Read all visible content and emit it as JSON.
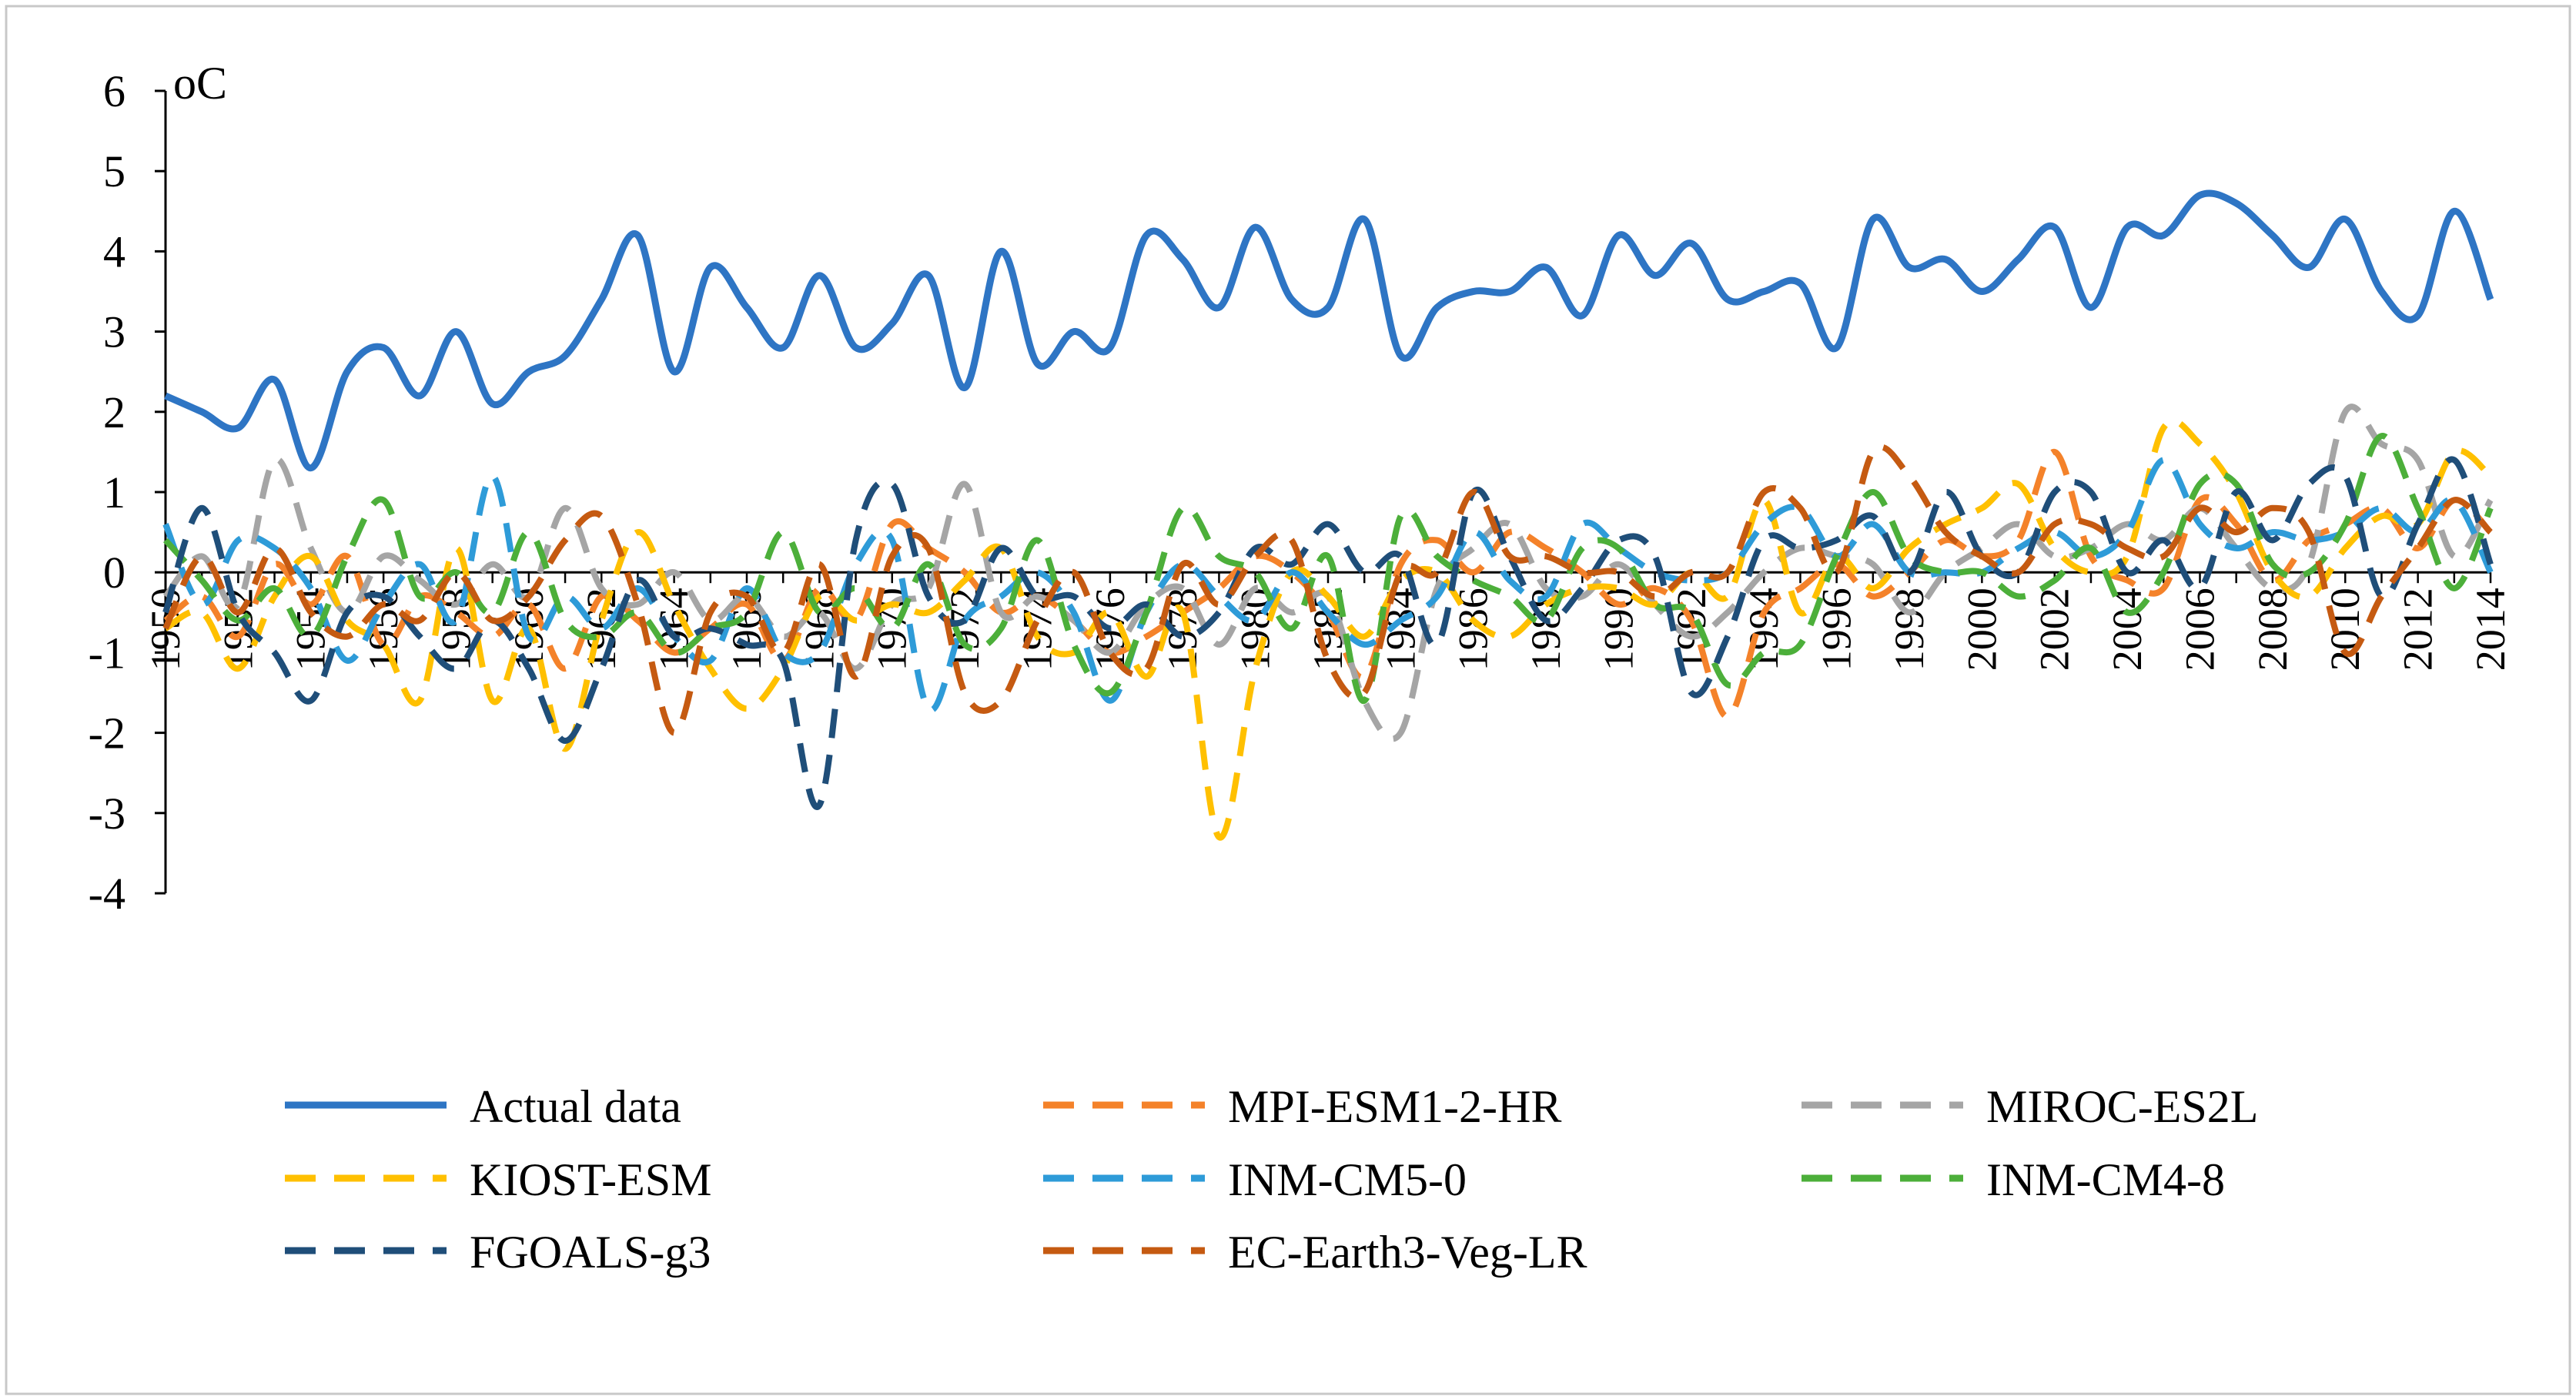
{
  "chart_data": {
    "type": "line",
    "unit_label": "oC",
    "ylim": [
      -4,
      6
    ],
    "yticks": [
      6,
      5,
      4,
      3,
      2,
      1,
      0,
      -1,
      -2,
      -3,
      -4
    ],
    "x_start": 1950,
    "x_end": 2014,
    "xtick_labels": [
      "1950",
      "1952",
      "1954",
      "1956",
      "1958",
      "1960",
      "1962",
      "1964",
      "1966",
      "1968",
      "1970",
      "1972",
      "1974",
      "1976",
      "1978",
      "1980",
      "1982",
      "1984",
      "1986",
      "1988",
      "1990",
      "1992",
      "1994",
      "1996",
      "1998",
      "2000",
      "2002",
      "2004",
      "2006",
      "2008",
      "2010",
      "2012",
      "2014"
    ],
    "series": [
      {
        "name": "Actual data",
        "color": "#2E75C4",
        "dashed": false,
        "values": [
          2.2,
          2.0,
          1.8,
          2.4,
          1.3,
          2.5,
          2.8,
          2.2,
          3.0,
          2.1,
          2.5,
          2.7,
          3.4,
          4.2,
          2.5,
          3.8,
          3.3,
          2.8,
          3.7,
          2.8,
          3.1,
          3.7,
          2.3,
          4.0,
          2.6,
          3.0,
          2.8,
          4.2,
          3.9,
          3.3,
          4.3,
          3.4,
          3.3,
          4.4,
          2.7,
          3.3,
          3.5,
          3.5,
          3.8,
          3.2,
          4.2,
          3.7,
          4.1,
          3.4,
          3.5,
          3.6,
          2.8,
          4.4,
          3.8,
          3.9,
          3.5,
          3.9,
          4.3,
          3.3,
          4.3,
          4.2,
          4.7,
          4.6,
          4.2,
          3.8,
          4.4,
          3.5,
          3.2,
          4.5,
          3.4
        ]
      },
      {
        "name": "MPI-ESM1-2-HR",
        "color": "#F4822A",
        "dashed": true,
        "values": [
          -0.6,
          -0.3,
          -0.8,
          0.1,
          -0.4,
          0.2,
          -0.9,
          -0.3,
          -0.5,
          -0.8,
          -0.4,
          -1.2,
          -0.3,
          -0.6,
          -1.0,
          -0.7,
          -0.4,
          -1.1,
          -0.2,
          -0.6,
          0.6,
          0.3,
          0.0,
          -0.5,
          -0.3,
          -0.6,
          -1.0,
          -0.8,
          -0.5,
          -0.2,
          0.2,
          0.0,
          -0.5,
          -1.3,
          0.1,
          0.4,
          0.0,
          0.5,
          0.3,
          0.0,
          -0.4,
          -0.2,
          -0.6,
          -1.8,
          -0.5,
          -0.2,
          0.1,
          -0.3,
          0.0,
          0.4,
          0.2,
          0.4,
          1.5,
          0.2,
          -0.1,
          -0.2,
          0.9,
          0.6,
          -0.1,
          0.4,
          0.6,
          0.8,
          0.3,
          0.9,
          0.5
        ]
      },
      {
        "name": "MIROC-ES2L",
        "color": "#A5A5A5",
        "dashed": true,
        "values": [
          -0.3,
          0.2,
          -0.4,
          1.4,
          0.3,
          -0.5,
          0.2,
          -0.1,
          -0.4,
          0.1,
          -0.3,
          0.8,
          -0.2,
          -0.4,
          0.0,
          -0.6,
          -0.3,
          -0.8,
          -0.5,
          -1.2,
          -0.4,
          -0.2,
          1.1,
          -0.5,
          -0.3,
          -0.6,
          -1.0,
          -0.4,
          -0.2,
          -0.9,
          -0.2,
          -0.5,
          -0.3,
          -1.6,
          -2.0,
          -0.2,
          0.3,
          0.6,
          -0.2,
          -0.3,
          0.1,
          -0.4,
          -0.8,
          -0.5,
          0.0,
          0.3,
          0.2,
          0.1,
          -0.5,
          0.0,
          0.3,
          0.6,
          0.2,
          0.3,
          0.6,
          0.4,
          0.8,
          0.3,
          -0.2,
          0.1,
          2.0,
          1.6,
          1.4,
          0.2,
          0.9
        ]
      },
      {
        "name": "KIOST-ESM",
        "color": "#FFC000",
        "dashed": true,
        "values": [
          -0.7,
          -0.5,
          -1.2,
          -0.3,
          0.2,
          -0.6,
          -0.9,
          -1.6,
          0.3,
          -1.6,
          -0.7,
          -2.2,
          -0.6,
          0.5,
          -0.4,
          -1.2,
          -1.7,
          -1.2,
          -0.3,
          -0.6,
          -0.4,
          -0.5,
          -0.1,
          0.3,
          -0.8,
          -1.0,
          -0.5,
          -1.3,
          -0.5,
          -3.3,
          -1.2,
          0.0,
          -0.3,
          -0.8,
          -0.1,
          0.0,
          -0.6,
          -0.8,
          -0.4,
          -0.2,
          -0.2,
          -0.4,
          0.0,
          -0.3,
          0.9,
          -0.5,
          0.2,
          -0.2,
          0.3,
          0.6,
          0.8,
          1.1,
          0.3,
          0.0,
          0.2,
          1.8,
          1.6,
          1.0,
          0.0,
          -0.3,
          0.3,
          0.7,
          0.6,
          1.5,
          1.2
        ]
      },
      {
        "name": "INM-CM5-0",
        "color": "#2E9BD8",
        "dashed": true,
        "values": [
          0.6,
          -0.4,
          0.4,
          0.3,
          -0.2,
          -1.1,
          -0.4,
          0.1,
          -0.6,
          1.2,
          -0.8,
          -0.3,
          -0.7,
          -0.2,
          -0.8,
          -1.1,
          -0.2,
          -1.0,
          -1.0,
          0.1,
          0.4,
          -1.7,
          -0.6,
          -0.3,
          0.0,
          -0.5,
          -1.6,
          -0.5,
          0.1,
          -0.3,
          -0.6,
          0.0,
          -0.5,
          -0.9,
          -0.6,
          -0.3,
          0.5,
          -0.1,
          -0.3,
          0.6,
          0.3,
          0.0,
          -0.1,
          0.0,
          0.6,
          0.8,
          0.2,
          0.6,
          0.0,
          0.0,
          0.0,
          0.3,
          0.5,
          0.2,
          0.5,
          1.4,
          0.6,
          0.3,
          0.5,
          0.4,
          0.5,
          0.8,
          0.5,
          0.9,
          0.0
        ]
      },
      {
        "name": "INM-CM4-8",
        "color": "#4CAF3A",
        "dashed": true,
        "values": [
          0.4,
          -0.1,
          -0.6,
          -0.2,
          -0.8,
          0.2,
          0.9,
          -0.3,
          0.0,
          -0.5,
          0.5,
          -0.6,
          -0.8,
          -0.5,
          -1.0,
          -0.7,
          -0.5,
          0.5,
          -0.5,
          -0.2,
          -0.7,
          0.1,
          -0.9,
          -0.7,
          0.4,
          -0.9,
          -1.5,
          -0.5,
          0.8,
          0.2,
          0.0,
          -0.7,
          0.2,
          -1.6,
          0.7,
          0.2,
          -0.1,
          -0.3,
          -0.6,
          0.3,
          0.3,
          -0.4,
          -0.5,
          -1.4,
          -1.0,
          -0.9,
          0.2,
          1.0,
          0.2,
          0.0,
          0.0,
          -0.3,
          -0.1,
          0.3,
          -0.5,
          0.0,
          1.1,
          1.1,
          0.1,
          0.0,
          0.6,
          1.7,
          0.8,
          -0.2,
          0.8
        ]
      },
      {
        "name": "FGOALS-g3",
        "color": "#1F4E79",
        "dashed": true,
        "values": [
          -0.5,
          0.8,
          -0.5,
          -1.0,
          -1.6,
          -0.5,
          -0.3,
          -0.8,
          -1.2,
          -0.6,
          -1.2,
          -2.1,
          -1.2,
          -0.1,
          -0.8,
          -0.7,
          -0.9,
          -1.1,
          -2.9,
          0.4,
          1.1,
          -0.3,
          -0.6,
          0.3,
          -0.3,
          -0.3,
          -0.7,
          -0.4,
          -0.8,
          -0.5,
          0.3,
          0.1,
          0.6,
          0.0,
          0.2,
          -0.9,
          1.0,
          0.2,
          -0.6,
          -0.2,
          0.4,
          0.2,
          -1.5,
          -0.8,
          0.4,
          0.3,
          0.4,
          0.7,
          0.0,
          1.0,
          0.2,
          0.0,
          1.0,
          1.0,
          0.0,
          0.4,
          -0.2,
          1.0,
          0.4,
          1.1,
          1.2,
          -0.3,
          0.6,
          1.4,
          0.1
        ]
      },
      {
        "name": "EC-Earth3-Veg-LR",
        "color": "#C55A11",
        "dashed": true,
        "values": [
          -0.7,
          0.2,
          -0.5,
          0.3,
          -0.5,
          -0.8,
          -0.4,
          -0.6,
          0.0,
          -0.6,
          -0.3,
          0.4,
          0.7,
          -0.4,
          -2.0,
          -0.5,
          -0.3,
          -1.0,
          0.1,
          -1.3,
          0.2,
          0.3,
          -1.5,
          -1.6,
          -0.6,
          0.0,
          -1.0,
          -1.2,
          0.1,
          -0.4,
          0.2,
          0.4,
          -1.1,
          -1.5,
          0.0,
          0.0,
          1.0,
          0.2,
          0.2,
          0.0,
          0.0,
          -0.3,
          0.0,
          0.0,
          1.0,
          0.8,
          0.0,
          1.5,
          1.2,
          0.5,
          0.2,
          0.0,
          0.6,
          0.6,
          0.3,
          0.2,
          0.8,
          0.5,
          0.8,
          0.5,
          -1.0,
          -0.3,
          0.3,
          0.9,
          0.5
        ]
      }
    ]
  }
}
